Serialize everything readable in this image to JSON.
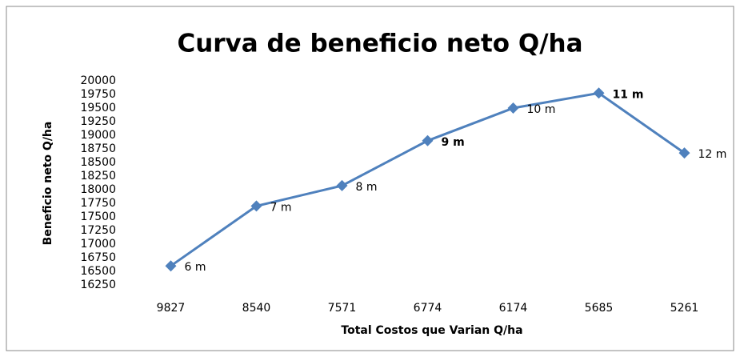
{
  "chart_data": {
    "type": "line",
    "title": "Curva de beneficio neto Q/ha",
    "x_label": "Total Costos que Varian Q/ha",
    "y_label": "Beneficio neto Q/ha",
    "categories": [
      "9827",
      "8540",
      "7571",
      "6774",
      "6174",
      "5685",
      "5261"
    ],
    "series": [
      {
        "name": "Beneficio neto",
        "color": "#4f81bd",
        "values": [
          16600,
          17700,
          18075,
          18900,
          19500,
          19775,
          18675
        ]
      }
    ],
    "point_labels": [
      "6 m",
      "7 m",
      "8 m",
      "9 m",
      "10 m",
      "11 m",
      "12 m"
    ],
    "point_label_bold": [
      false,
      false,
      false,
      true,
      false,
      true,
      false
    ],
    "ylim": [
      16250,
      20000
    ],
    "yticks": [
      16250,
      16500,
      16750,
      17000,
      17250,
      17500,
      17750,
      18000,
      18250,
      18500,
      18750,
      19000,
      19250,
      19500,
      19750,
      20000
    ],
    "grid": false
  }
}
